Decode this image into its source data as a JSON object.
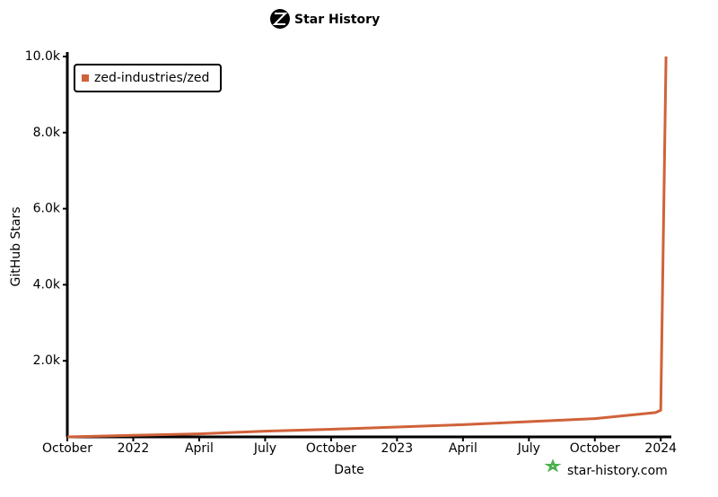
{
  "chart_data": {
    "type": "line",
    "title": "Star History",
    "x_label": "Date",
    "y_label": "GitHub Stars",
    "watermark": "star-history.com",
    "x": [
      2021.75,
      2022.0,
      2022.25,
      2022.5,
      2022.75,
      2023.0,
      2023.25,
      2023.5,
      2023.75,
      2023.98,
      2024.0,
      2024.02
    ],
    "series": [
      {
        "name": "zed-industries/zed",
        "color": "#d0623a",
        "values": [
          0,
          40,
          80,
          150,
          200,
          260,
          320,
          400,
          480,
          640,
          700,
          10000
        ]
      }
    ],
    "xlim": [
      2021.75,
      2024.04
    ],
    "xticks": [
      {
        "value": 2021.75,
        "label": "October"
      },
      2022,
      {
        "value": 2022.25,
        "label": "April"
      },
      {
        "value": 2022.5,
        "label": "July"
      },
      {
        "value": 2022.75,
        "label": "October"
      },
      2023,
      {
        "value": 2023.25,
        "label": "April"
      },
      {
        "value": 2023.5,
        "label": "July"
      },
      {
        "value": 2023.75,
        "label": "October"
      },
      2024
    ],
    "ylim": [
      0,
      10000
    ],
    "yticks": [
      {
        "value": 2000,
        "label": "2.0k"
      },
      {
        "value": 4000,
        "label": "4.0k"
      },
      {
        "value": 6000,
        "label": "6.0k"
      },
      {
        "value": 8000,
        "label": "8.0k"
      },
      {
        "value": 10000,
        "label": "10.0k"
      }
    ],
    "legend": "top-left"
  }
}
